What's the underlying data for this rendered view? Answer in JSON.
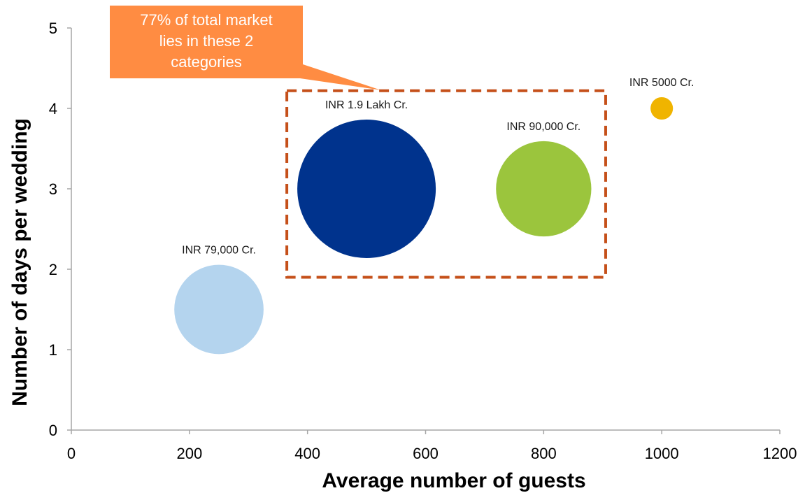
{
  "chart_data": {
    "type": "scatter",
    "xlabel": "Average number of guests",
    "ylabel": "Number of days per wedding",
    "xlim": [
      0,
      1200
    ],
    "ylim": [
      0,
      5
    ],
    "xticks": [
      0,
      200,
      400,
      600,
      800,
      1000,
      1200
    ],
    "yticks": [
      0,
      1,
      2,
      3,
      4,
      5
    ],
    "grid": false,
    "bubbles": [
      {
        "x": 250,
        "y": 1.5,
        "size": 79000,
        "label": "INR 79,000 Cr.",
        "color": "#b4d4ee"
      },
      {
        "x": 500,
        "y": 3,
        "size": 190000,
        "label": "INR 1.9 Lakh Cr.",
        "color": "#00338d"
      },
      {
        "x": 800,
        "y": 3,
        "size": 90000,
        "label": "INR 90,000 Cr.",
        "color": "#9bc53d"
      },
      {
        "x": 1000,
        "y": 4,
        "size": 5000,
        "label": "INR 5000 Cr.",
        "color": "#f0b400"
      }
    ],
    "annotations": [
      {
        "text": [
          "77% of total market",
          "lies in these 2",
          "categories"
        ],
        "color": "#ff8c42",
        "text_color": "#ffffff",
        "box_x": [
          365,
          905
        ],
        "box_y": [
          1.9,
          4.22
        ],
        "box_color": "#c5501a"
      }
    ]
  }
}
